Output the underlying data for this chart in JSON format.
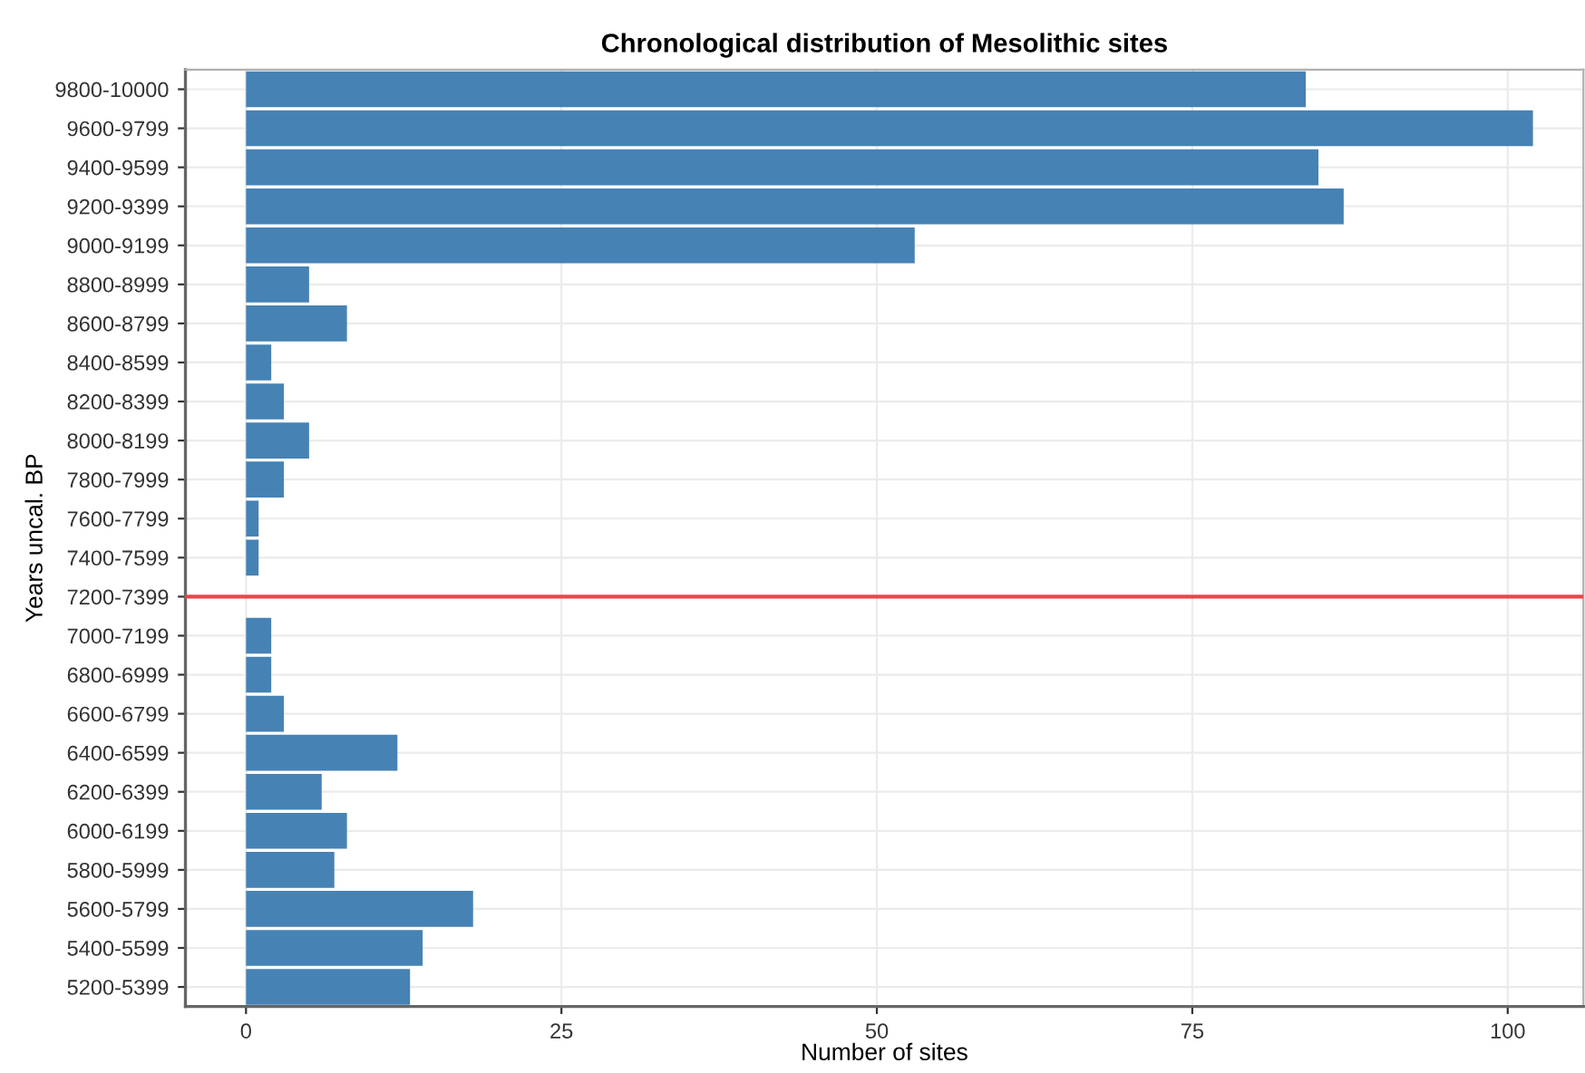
{
  "chart_data": {
    "type": "bar",
    "orientation": "horizontal",
    "title": "Chronological distribution of Mesolithic sites",
    "xlabel": "Number of sites",
    "ylabel": "Years uncal. BP",
    "categories": [
      "9800-10000",
      "9600-9799",
      "9400-9599",
      "9200-9399",
      "9000-9199",
      "8800-8999",
      "8600-8799",
      "8400-8599",
      "8200-8399",
      "8000-8199",
      "7800-7999",
      "7600-7799",
      "7400-7599",
      "7200-7399",
      "7000-7199",
      "6800-6999",
      "6600-6799",
      "6400-6599",
      "6200-6399",
      "6000-6199",
      "5800-5999",
      "5600-5799",
      "5400-5599",
      "5200-5399"
    ],
    "values": [
      84,
      102,
      85,
      87,
      53,
      5,
      8,
      2,
      3,
      5,
      3,
      1,
      1,
      0,
      2,
      2,
      3,
      12,
      6,
      8,
      7,
      18,
      14,
      13
    ],
    "color": "#4682b4",
    "xlim": [
      -4.8,
      106
    ],
    "xticks": [
      0,
      25,
      50,
      75,
      100
    ],
    "ref_lines": [
      {
        "axis": "y",
        "value": "7200-7399",
        "color": "#e8474a"
      }
    ],
    "grid": true
  }
}
